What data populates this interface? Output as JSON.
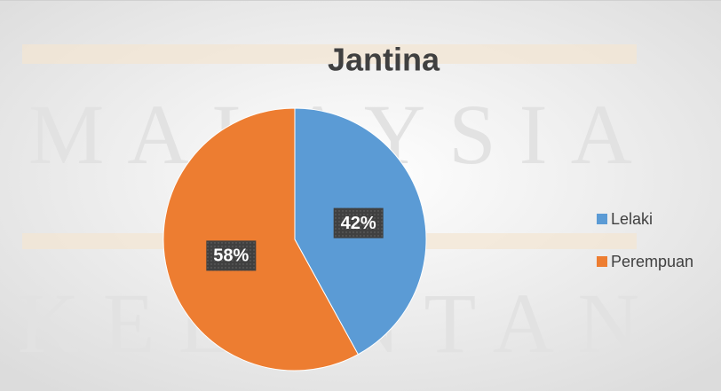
{
  "chart_data": {
    "type": "pie",
    "title": "Jantina",
    "watermark": [
      "MALAYSIA",
      "KELANTAN"
    ],
    "categories": [
      "Lelaki",
      "Perempuan"
    ],
    "values": [
      42,
      58
    ],
    "value_labels": [
      "42%",
      "58%"
    ],
    "colors": [
      "#5b9bd5",
      "#ed7d31"
    ],
    "legend": "right"
  }
}
